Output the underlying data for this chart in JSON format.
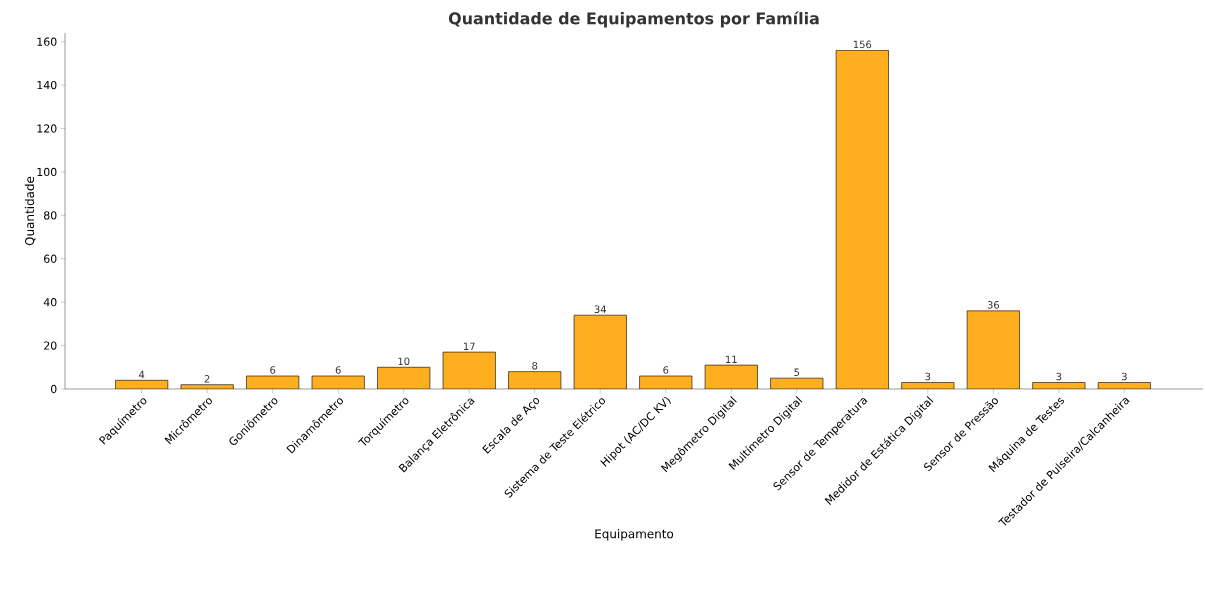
{
  "chart_data": {
    "type": "bar",
    "title": "Quantidade de Equipamentos por Família",
    "xlabel": "Equipamento",
    "ylabel": "Quantidade",
    "categories": [
      "Paquímetro",
      "Micrômetro",
      "Goniômetro",
      "Dinamômetro",
      "Torquímetro",
      "Balança Eletrônica",
      "Escala de Aço",
      "Sistema de Teste Elétrico",
      "Hipot (AC/DC KV)",
      "Megômetro Digital",
      "Multímetro Digital",
      "Sensor de Temperatura",
      "Medidor de Estática Digital",
      "Sensor de Pressão",
      "Máquina de Testes",
      "Testador de Pulseira/Calcanheira"
    ],
    "values": [
      4,
      2,
      6,
      6,
      10,
      17,
      8,
      34,
      6,
      11,
      5,
      156,
      3,
      36,
      3,
      3
    ],
    "color": "#ffae1f",
    "ylim": [
      0,
      164
    ],
    "yticks": [
      0,
      20,
      40,
      60,
      80,
      100,
      120,
      140,
      160
    ],
    "data_labels": true,
    "grid": false
  }
}
